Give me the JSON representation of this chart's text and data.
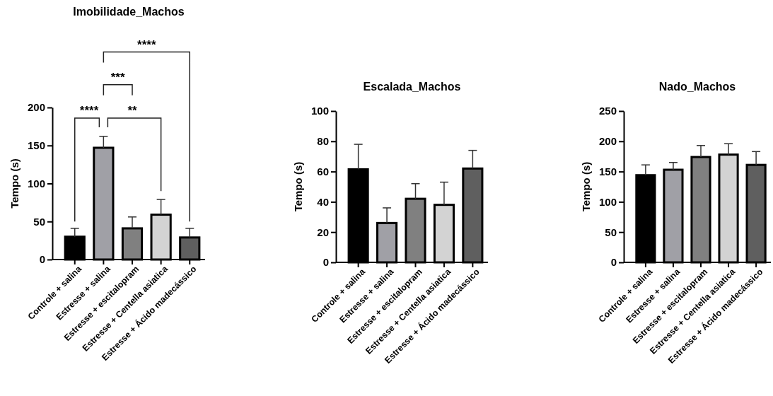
{
  "chart_data": [
    {
      "type": "bar",
      "title": "Imobilidade_Machos",
      "ylabel": "Tempo (s)",
      "categories": [
        "Controle + salina",
        "Estresse + salina",
        "Estresse + escitalopram",
        "Estresse + Centella asiatica",
        "Estresse + Ácido madecássico"
      ],
      "values": [
        30,
        147,
        41,
        59,
        29
      ],
      "colors": [
        "#000000",
        "#a0a0a6",
        "#808080",
        "#d3d3d3",
        "#5f5f5f"
      ],
      "errors": [
        [
          30,
          41
        ],
        [
          147,
          162
        ],
        [
          41,
          56
        ],
        [
          59,
          79
        ],
        [
          29,
          41
        ]
      ],
      "ylim": [
        0,
        200
      ],
      "yticks": [
        0,
        50,
        100,
        150,
        200
      ],
      "grid": false,
      "annotations": [
        "****",
        "***",
        "**",
        "****"
      ]
    },
    {
      "type": "bar",
      "title": "Escalada_Machos",
      "ylabel": "Tempo (s)",
      "categories": [
        "Controle + salina",
        "Estresse + salina",
        "Estresse + escitalopram",
        "Estresse + Centella asiatica",
        "Estresse + Ácido madecássico"
      ],
      "values": [
        61.5,
        26,
        42,
        38,
        62
      ],
      "colors": [
        "#000000",
        "#a0a0a6",
        "#808080",
        "#d3d3d3",
        "#5f5f5f"
      ],
      "errors": [
        [
          61.5,
          78
        ],
        [
          26,
          36
        ],
        [
          42,
          52
        ],
        [
          38,
          53
        ],
        [
          62,
          74
        ]
      ],
      "ylim": [
        0,
        100
      ],
      "yticks": [
        0,
        20,
        40,
        60,
        80,
        100
      ],
      "grid": false
    },
    {
      "type": "bar",
      "title": "Nado_Machos",
      "ylabel": "Tempo (s)",
      "categories": [
        "Controle + salina",
        "Estresse + salina",
        "Estresse + escitalopram",
        "Estresse + Centella asiatica",
        "Estresse + Ácido madecássico"
      ],
      "values": [
        144,
        153,
        174,
        178,
        161
      ],
      "colors": [
        "#000000",
        "#a0a0a6",
        "#808080",
        "#d3d3d3",
        "#5f5f5f"
      ],
      "errors": [
        [
          144,
          161
        ],
        [
          153,
          165
        ],
        [
          174,
          193
        ],
        [
          178,
          196
        ],
        [
          161,
          183
        ]
      ],
      "ylim": [
        0,
        250
      ],
      "yticks": [
        0,
        50,
        100,
        150,
        200,
        250
      ],
      "grid": false
    }
  ]
}
